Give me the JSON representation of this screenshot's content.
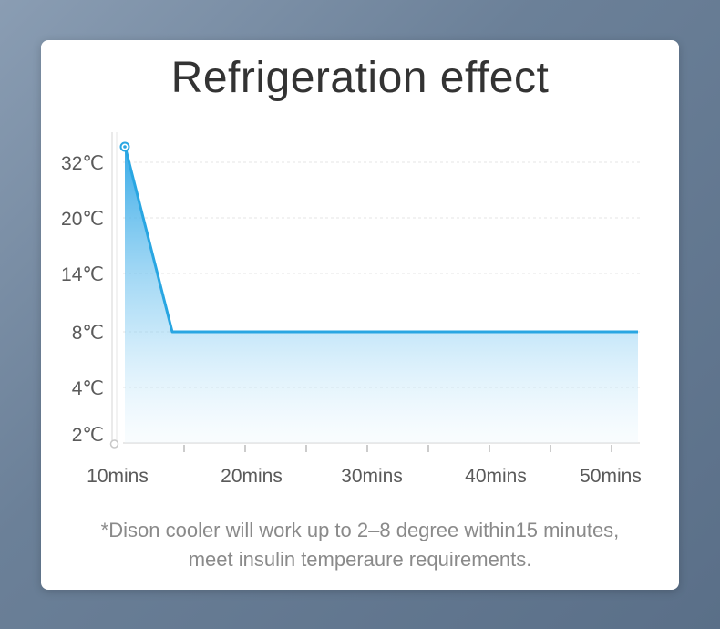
{
  "chart_data": {
    "type": "area",
    "title": "Refrigeration effect",
    "y_ticks": [
      "32℃",
      "20℃",
      "14℃",
      "8℃",
      "4℃",
      "2℃"
    ],
    "x_ticks": [
      "10mins",
      "20mins",
      "30mins",
      "40mins",
      "50mins"
    ],
    "series": [
      {
        "points": [
          {
            "x": 10.7,
            "y": "above 32℃"
          },
          {
            "x": 14.5,
            "y": "8℃"
          },
          {
            "x": 52.2,
            "y": "8℃"
          }
        ]
      }
    ],
    "grid": true,
    "line_color": "#29a6e2",
    "fill_color": "#3fb0ea"
  },
  "footnote": {
    "line1": "*Dison cooler will work up to  2–8 degree within15 minutes,",
    "line2": "meet insulin temperaure requirements."
  }
}
